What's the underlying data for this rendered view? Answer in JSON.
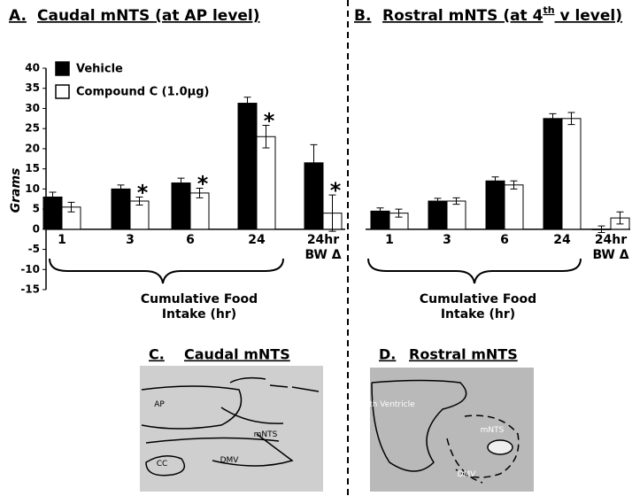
{
  "chart_data": [
    {
      "type": "bar",
      "label": "A.",
      "title": "Caudal mNTS (at AP level)",
      "ylabel": "Grams",
      "xlabel": "Cumulative Food Intake (hr)",
      "categories": [
        "1",
        "3",
        "6",
        "24",
        "24hr BW Δ"
      ],
      "ylim": [
        -15,
        40
      ],
      "yticks": [
        -15,
        -10,
        -5,
        0,
        5,
        10,
        15,
        20,
        25,
        30,
        35,
        40
      ],
      "legend": "top-left",
      "series": [
        {
          "name": "Vehicle",
          "color": "#000000",
          "values": [
            8,
            10,
            11.5,
            31.3,
            16.5
          ],
          "errors": [
            1.2,
            1,
            1.2,
            1.5,
            4.5
          ]
        },
        {
          "name": "Compound C (1.0μg)",
          "color": "#ffffff",
          "values": [
            5.5,
            7,
            9,
            23,
            4
          ],
          "errors": [
            1.2,
            1,
            1.2,
            2.8,
            4.5
          ]
        }
      ],
      "annotations": [
        {
          "category": "3",
          "text": "*"
        },
        {
          "category": "6",
          "text": "*"
        },
        {
          "category": "24",
          "text": "*"
        },
        {
          "category": "24hr BW Δ",
          "text": "*"
        }
      ]
    },
    {
      "type": "bar",
      "label": "B.",
      "title_parts": [
        "Rostral mNTS (at 4",
        "th",
        " v level)"
      ],
      "xlabel": "Cumulative Food Intake (hr)",
      "categories": [
        "1",
        "3",
        "6",
        "24",
        "24hr BW Δ"
      ],
      "ylim": [
        -15,
        40
      ],
      "series": [
        {
          "name": "Vehicle",
          "color": "#000000",
          "values": [
            4.5,
            7,
            12,
            27.5,
            0
          ],
          "errors": [
            0.8,
            0.7,
            1,
            1.2,
            0.8
          ]
        },
        {
          "name": "Compound C (1.0μg)",
          "color": "#ffffff",
          "values": [
            4,
            7,
            11,
            27.5,
            2.8
          ],
          "errors": [
            1,
            0.8,
            1,
            1.5,
            1.5
          ]
        }
      ]
    }
  ],
  "images": [
    {
      "label": "C.",
      "title": "Caudal mNTS",
      "regions": [
        "AP",
        "mNTS",
        "DMV",
        "CC"
      ]
    },
    {
      "label": "D.",
      "title": "Rostral mNTS",
      "regions": [
        "4th Ventricle",
        "mNTS",
        "DMV"
      ]
    }
  ]
}
